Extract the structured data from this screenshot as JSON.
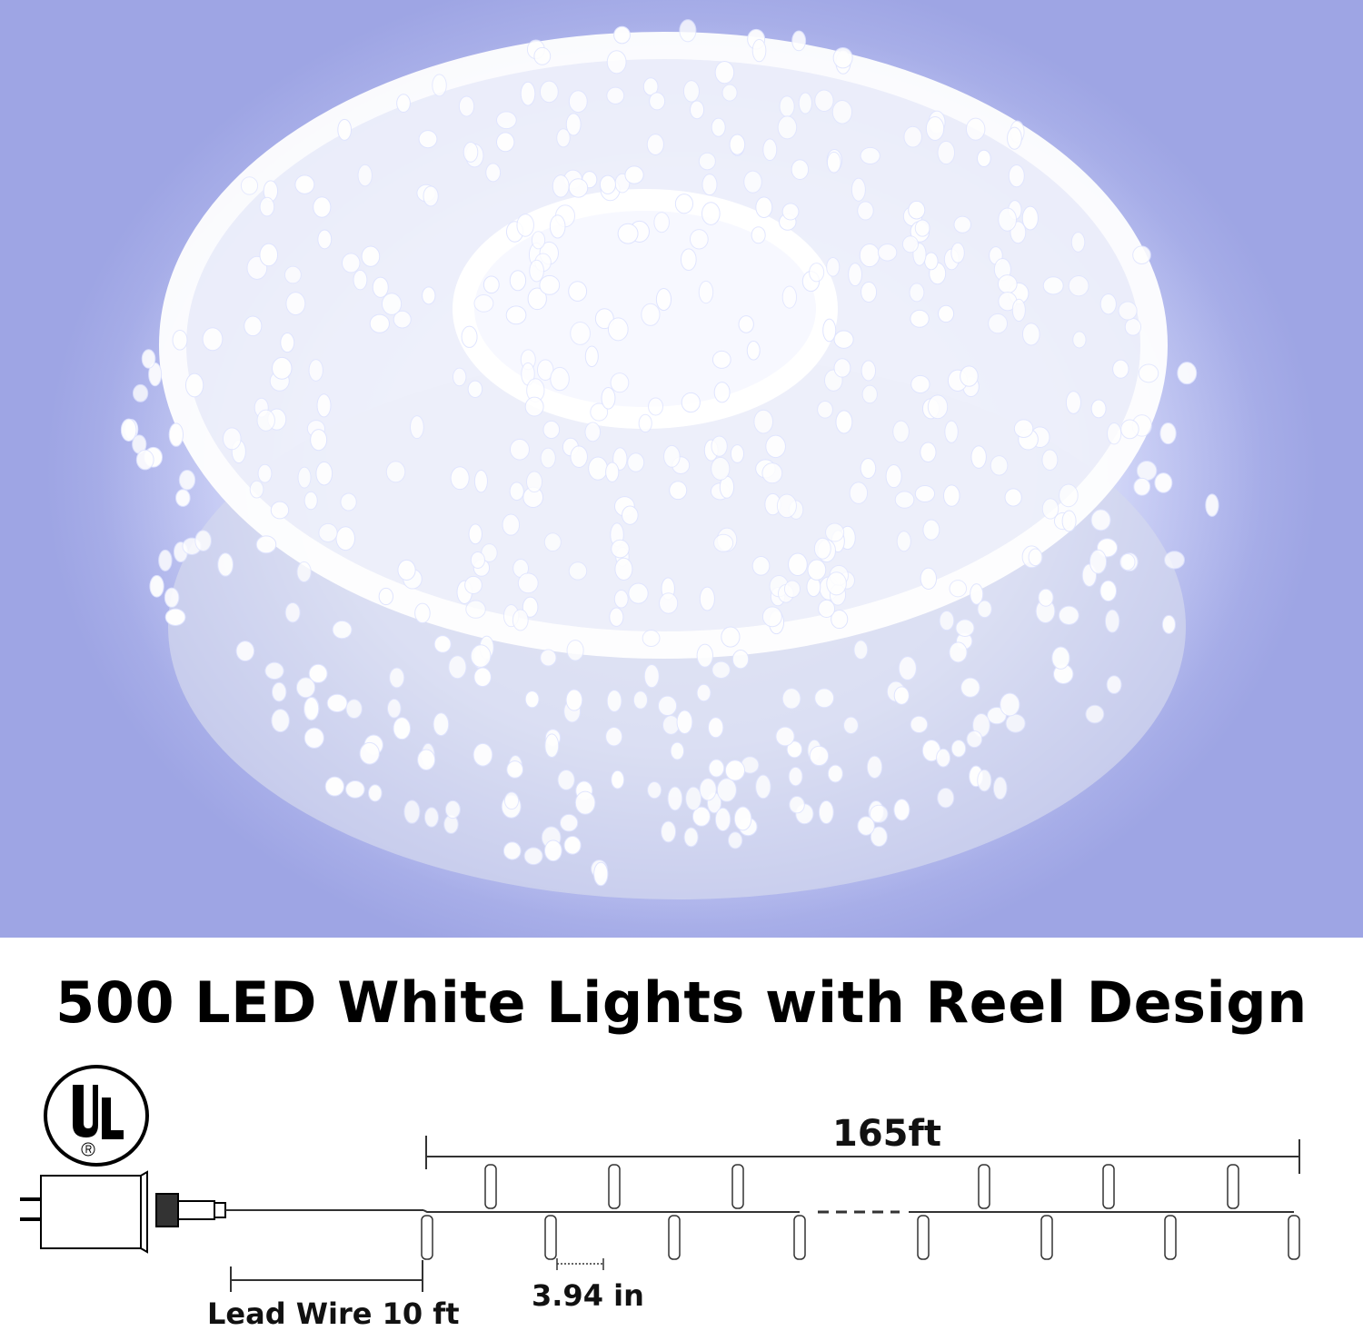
{
  "product": {
    "title": "500 LED White Lights with Reel Design",
    "certification_logo": "UL",
    "total_length": "165ft",
    "bulb_spacing": "3.94 in",
    "lead_wire": "Lead Wire 10 ft"
  },
  "colors": {
    "background": "#a3aae6",
    "led_glow": "#f5f8ff",
    "text": "#000000"
  }
}
